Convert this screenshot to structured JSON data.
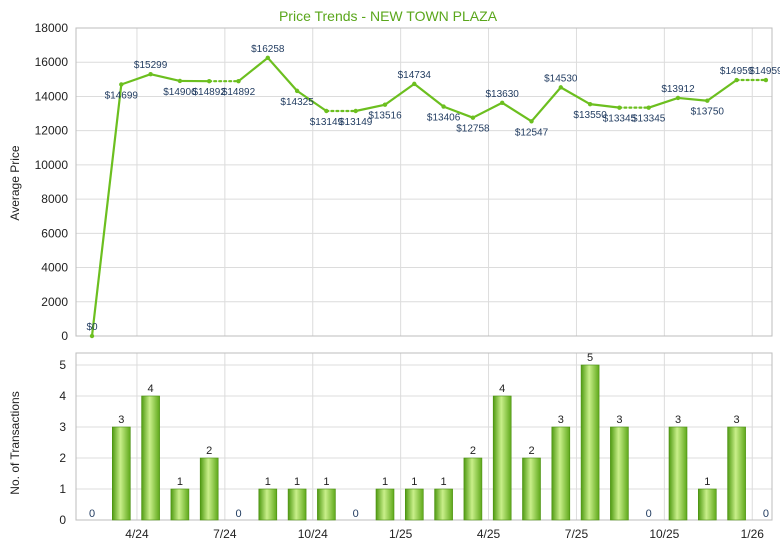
{
  "colors": {
    "line": "#6cbf1f",
    "bar_dark": "#4f9a12",
    "bar_light": "#c9ef8a",
    "title": "#5aa61b",
    "grid": "#dcdcdc"
  },
  "chart_data": [
    {
      "type": "line",
      "title": "Price Trends - NEW TOWN PLAZA",
      "ylabel": "Average Price",
      "xlabel": "",
      "ylim": [
        0,
        18000
      ],
      "yticks": [
        "0",
        "2000",
        "4000",
        "6000",
        "8000",
        "10000",
        "12000",
        "14000",
        "16000",
        "18000"
      ],
      "grid": true,
      "series": [
        {
          "values": [
            0,
            14699,
            15299,
            14906,
            14892,
            14892,
            16258,
            14325,
            13149,
            13149,
            13516,
            14734,
            13406,
            12758,
            13630,
            12547,
            14530,
            13550,
            13345,
            13345,
            13912,
            13750,
            14959,
            14959
          ],
          "labels": [
            "$0",
            "$14699",
            "$15299",
            "$14906",
            "$14892",
            "$14892",
            "$16258",
            "$14325",
            "$13149",
            "$13149",
            "$13516",
            "$14734",
            "$13406",
            "$12758",
            "$13630",
            "$12547",
            "$14530",
            "$13550",
            "$13345",
            "$13345",
            "$13912",
            "$13750",
            "$14959",
            "$14959"
          ],
          "dotted_segments": [
            4,
            8,
            18,
            22
          ]
        }
      ]
    },
    {
      "type": "bar",
      "ylabel": "No. of Transactions",
      "ylim": [
        0,
        5
      ],
      "yticks": [
        "0",
        "1",
        "2",
        "3",
        "4",
        "5"
      ],
      "grid": true,
      "x_tick_labels": [
        {
          "index": 2,
          "label": "4/24"
        },
        {
          "index": 5,
          "label": "7/24"
        },
        {
          "index": 8,
          "label": "10/24"
        },
        {
          "index": 11,
          "label": "1/25"
        },
        {
          "index": 14,
          "label": "4/25"
        },
        {
          "index": 17,
          "label": "7/25"
        },
        {
          "index": 20,
          "label": "10/25"
        },
        {
          "index": 23,
          "label": "1/26"
        }
      ],
      "values": [
        0,
        3,
        4,
        1,
        2,
        0,
        1,
        1,
        1,
        0,
        1,
        1,
        1,
        2,
        4,
        2,
        3,
        5,
        3,
        0,
        3,
        1,
        3,
        0
      ],
      "labels": [
        "0",
        "3",
        "4",
        "1",
        "2",
        "0",
        "1",
        "1",
        "1",
        "0",
        "1",
        "1",
        "1",
        "2",
        "4",
        "2",
        "3",
        "5",
        "3",
        "0",
        "3",
        "1",
        "3",
        "0"
      ]
    }
  ]
}
